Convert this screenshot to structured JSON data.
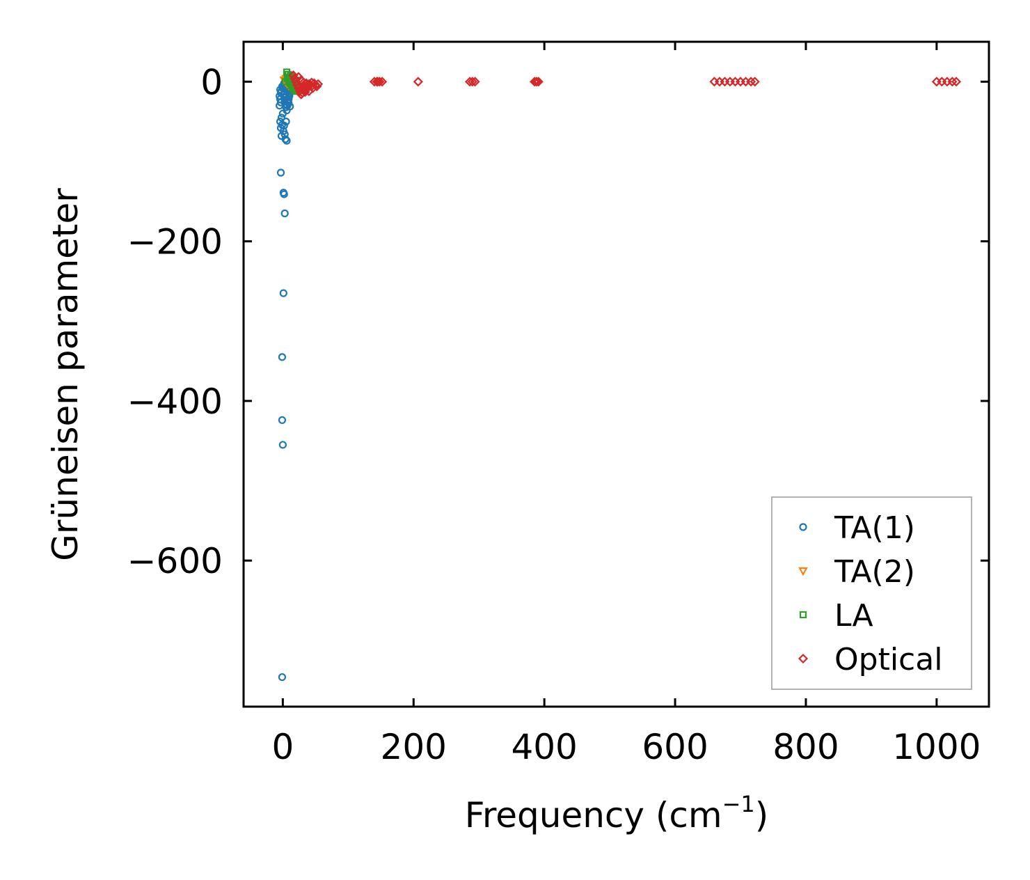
{
  "chart_data": {
    "type": "scatter",
    "title": "",
    "xlabel": "Frequency (cm",
    "xlabel_sup": "−1",
    "xlabel_close": ")",
    "ylabel": "Grüneisen parameter",
    "xlim": [
      -60,
      1080
    ],
    "ylim": [
      -783,
      50
    ],
    "xticks": [
      0,
      200,
      400,
      600,
      800,
      1000
    ],
    "xtick_labels": [
      "0",
      "200",
      "400",
      "600",
      "800",
      "1000"
    ],
    "yticks": [
      0,
      -200,
      -400,
      -600
    ],
    "ytick_labels": [
      "0",
      "−200",
      "−400",
      "−600"
    ],
    "grid": false,
    "legend_position": "lower-right",
    "series": [
      {
        "name": "TA(1)",
        "marker": "circle",
        "color": "#1f77b4",
        "points": [
          [
            -4,
            -10
          ],
          [
            -3,
            -14
          ],
          [
            -5,
            -18
          ],
          [
            -4,
            -22
          ],
          [
            -3,
            -26
          ],
          [
            -5,
            -30
          ],
          [
            -2,
            -12
          ],
          [
            -1,
            -6
          ],
          [
            0,
            -8
          ],
          [
            1,
            -16
          ],
          [
            2,
            -20
          ],
          [
            3,
            -24
          ],
          [
            4,
            -28
          ],
          [
            5,
            -32
          ],
          [
            6,
            -36
          ],
          [
            7,
            -30
          ],
          [
            8,
            -26
          ],
          [
            9,
            -22
          ],
          [
            10,
            -18
          ],
          [
            11,
            -14
          ],
          [
            12,
            -10
          ],
          [
            13,
            -6
          ],
          [
            14,
            -4
          ],
          [
            2,
            -2
          ],
          [
            4,
            -3
          ],
          [
            6,
            -5
          ],
          [
            8,
            -7
          ],
          [
            10,
            -9
          ],
          [
            12,
            -12
          ],
          [
            3,
            -15
          ],
          [
            5,
            -19
          ],
          [
            7,
            -23
          ],
          [
            9,
            -27
          ],
          [
            11,
            -31
          ],
          [
            6,
            -2
          ],
          [
            8,
            -1
          ],
          [
            10,
            -4
          ],
          [
            12,
            -8
          ],
          [
            -2,
            -45
          ],
          [
            -4,
            -50
          ],
          [
            -3,
            -58
          ],
          [
            -1,
            -54
          ],
          [
            0,
            -40
          ],
          [
            1,
            -62
          ],
          [
            3,
            -66
          ],
          [
            5,
            -50
          ],
          [
            2,
            -55
          ],
          [
            -2,
            -68
          ],
          [
            4,
            -72
          ],
          [
            6,
            -74
          ],
          [
            -3,
            -114
          ],
          [
            1,
            -139
          ],
          [
            2,
            -141
          ],
          [
            3,
            -165
          ],
          [
            1,
            -265
          ],
          [
            -1,
            -345
          ],
          [
            -1,
            -424
          ],
          [
            0,
            -455
          ],
          [
            -1,
            -746
          ]
        ]
      },
      {
        "name": "TA(2)",
        "marker": "triangle-down",
        "color": "#ff7f0e",
        "points": [
          [
            2,
            2
          ],
          [
            4,
            0
          ],
          [
            6,
            -2
          ],
          [
            8,
            1
          ],
          [
            10,
            -3
          ],
          [
            12,
            0
          ],
          [
            14,
            2
          ],
          [
            5,
            4
          ],
          [
            9,
            -5
          ],
          [
            11,
            3
          ]
        ]
      },
      {
        "name": "LA",
        "marker": "square",
        "color": "#2ca02c",
        "points": [
          [
            6,
            12
          ],
          [
            8,
            9
          ],
          [
            10,
            6
          ],
          [
            12,
            3
          ],
          [
            14,
            0
          ],
          [
            16,
            -3
          ],
          [
            18,
            -6
          ],
          [
            20,
            -9
          ],
          [
            7,
            4
          ],
          [
            9,
            1
          ],
          [
            11,
            -2
          ],
          [
            13,
            -5
          ],
          [
            15,
            -8
          ],
          [
            17,
            -11
          ],
          [
            19,
            2
          ],
          [
            21,
            -4
          ],
          [
            4,
            0
          ],
          [
            22,
            -12
          ],
          [
            16,
            5
          ],
          [
            12,
            8
          ]
        ]
      },
      {
        "name": "Optical",
        "marker": "diamond",
        "color": "#d62728",
        "points": [
          [
            16,
            8
          ],
          [
            18,
            4
          ],
          [
            20,
            0
          ],
          [
            22,
            -4
          ],
          [
            24,
            -8
          ],
          [
            26,
            -12
          ],
          [
            28,
            -16
          ],
          [
            30,
            -14
          ],
          [
            32,
            -10
          ],
          [
            34,
            -6
          ],
          [
            36,
            -2
          ],
          [
            38,
            -8
          ],
          [
            40,
            -12
          ],
          [
            42,
            -4
          ],
          [
            44,
            -6
          ],
          [
            46,
            -8
          ],
          [
            48,
            -2
          ],
          [
            50,
            -4
          ],
          [
            52,
            -6
          ],
          [
            54,
            -3
          ],
          [
            24,
            6
          ],
          [
            28,
            2
          ],
          [
            32,
            -1
          ],
          [
            36,
            -9
          ],
          [
            40,
            -3
          ],
          [
            44,
            -1
          ],
          [
            26,
            -6
          ],
          [
            30,
            -10
          ],
          [
            34,
            -13
          ],
          [
            38,
            -5
          ],
          [
            140,
            0
          ],
          [
            144,
            0
          ],
          [
            148,
            0
          ],
          [
            152,
            0
          ],
          [
            145,
            0
          ],
          [
            207,
            0
          ],
          [
            286,
            0
          ],
          [
            290,
            0
          ],
          [
            294,
            0
          ],
          [
            385,
            0
          ],
          [
            388,
            0
          ],
          [
            391,
            0
          ],
          [
            660,
            0
          ],
          [
            668,
            0
          ],
          [
            676,
            0
          ],
          [
            684,
            0
          ],
          [
            692,
            0
          ],
          [
            700,
            0
          ],
          [
            708,
            0
          ],
          [
            716,
            0
          ],
          [
            722,
            0
          ],
          [
            1000,
            0
          ],
          [
            1008,
            0
          ],
          [
            1016,
            0
          ],
          [
            1024,
            0
          ],
          [
            1030,
            0
          ]
        ]
      }
    ]
  }
}
